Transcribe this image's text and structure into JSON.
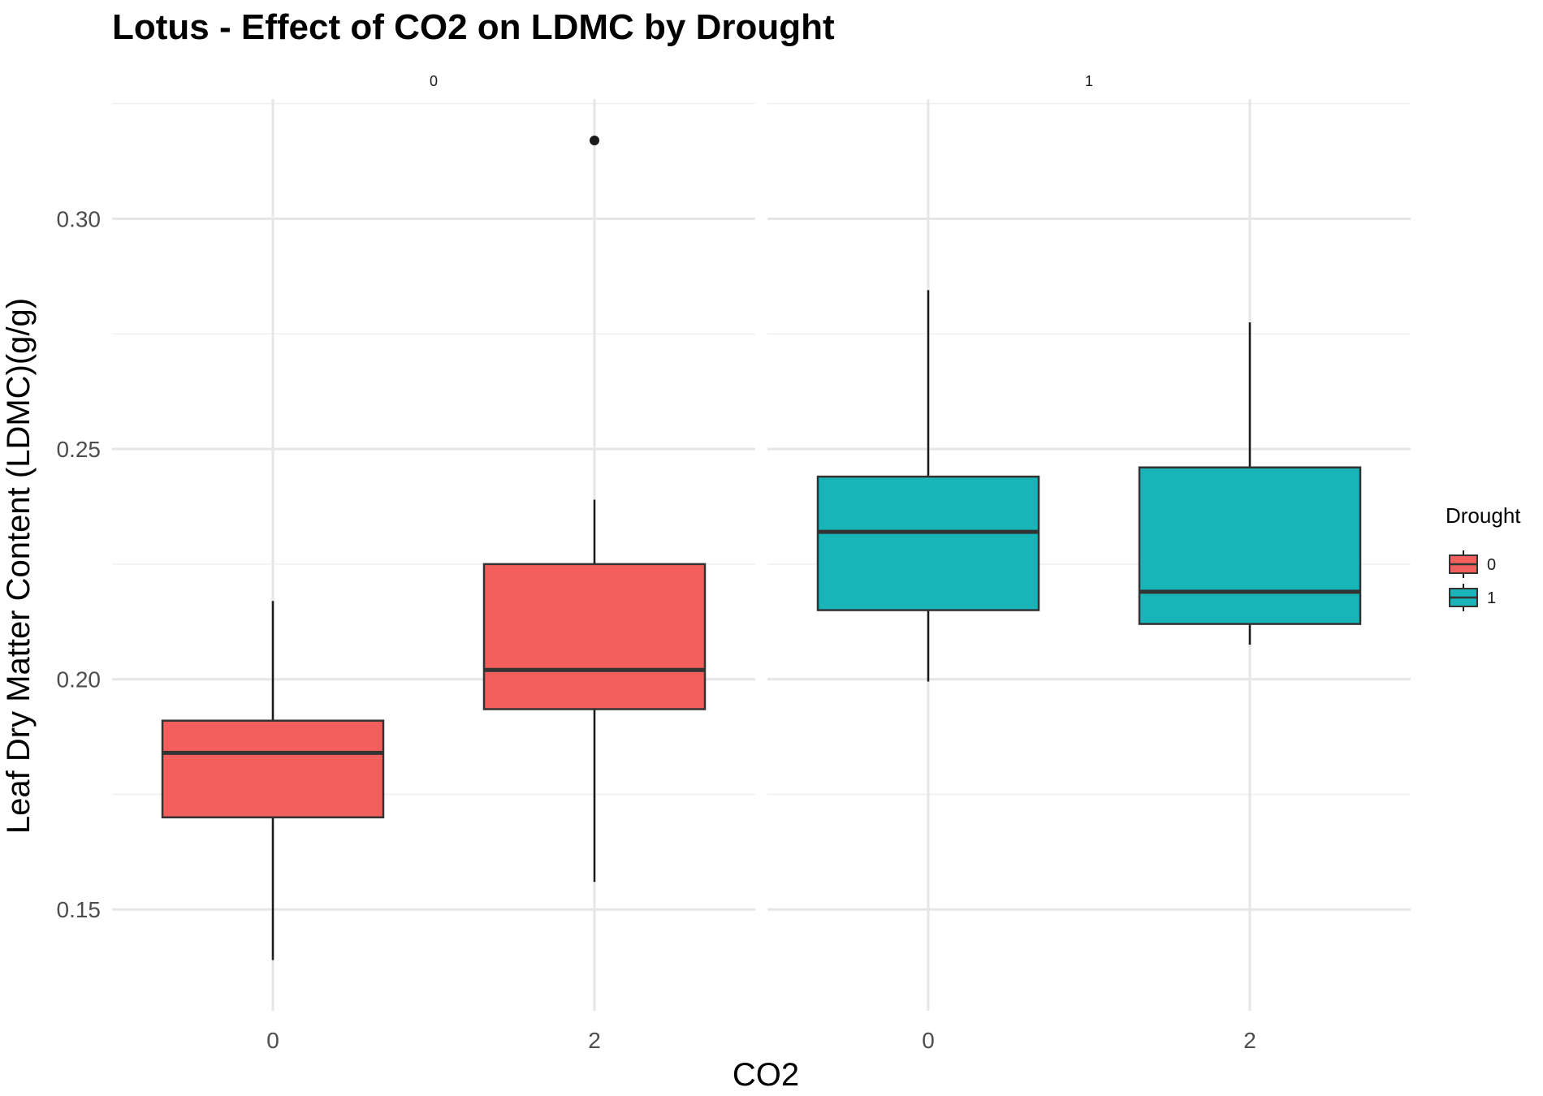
{
  "chart_data": {
    "type": "boxplot",
    "title": "Lotus - Effect of CO2 on LDMC by Drought",
    "xlabel": "CO2",
    "ylabel": "Leaf Dry Matter Content (LDMC)(g/g)",
    "ylim": [
      0.128,
      0.326
    ],
    "y_ticks": [
      "0.15",
      "0.20",
      "0.25",
      "0.30"
    ],
    "y_tick_values": [
      0.15,
      0.2,
      0.25,
      0.3
    ],
    "facet_variable": "Drought",
    "facets": [
      {
        "label": "0",
        "categories": [
          "0",
          "2"
        ],
        "boxes": [
          {
            "x": "0",
            "min": 0.139,
            "q1": 0.17,
            "median": 0.184,
            "q3": 0.191,
            "max": 0.217,
            "outliers": []
          },
          {
            "x": "2",
            "min": 0.156,
            "q1": 0.1935,
            "median": 0.202,
            "q3": 0.225,
            "max": 0.239,
            "outliers": [
              0.317
            ]
          }
        ]
      },
      {
        "label": "1",
        "categories": [
          "0",
          "2"
        ],
        "boxes": [
          {
            "x": "0",
            "min": 0.1995,
            "q1": 0.215,
            "median": 0.232,
            "q3": 0.244,
            "max": 0.2845,
            "outliers": []
          },
          {
            "x": "2",
            "min": 0.2075,
            "q1": 0.212,
            "median": 0.219,
            "q3": 0.246,
            "max": 0.2775,
            "outliers": []
          }
        ]
      }
    ],
    "legend": {
      "title": "Drought",
      "position": "right",
      "entries": [
        {
          "label": "0",
          "color": "#F25F5C"
        },
        {
          "label": "1",
          "color": "#19B4B8"
        }
      ]
    },
    "grid": true
  }
}
